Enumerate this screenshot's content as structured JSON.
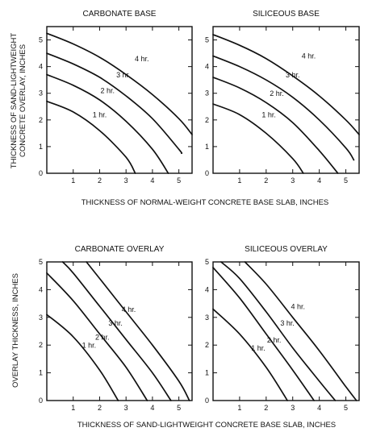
{
  "figure": {
    "top_xlabel": "THICKNESS OF NORMAL-WEIGHT CONCRETE BASE SLAB, INCHES",
    "top_ylabel_line1": "THICKNESS OF SAND-LIGHTWEIGHT",
    "top_ylabel_line2": "CONCRETE OVERLAY, INCHES",
    "bottom_xlabel": "THICKNESS OF SAND-LIGHTWEIGHT CONCRETE BASE SLAB, INCHES",
    "bottom_ylabel": "OVERLAY THICKNESS, INCHES"
  },
  "chart_data": [
    {
      "type": "line",
      "title": "CARBONATE BASE",
      "xlim": [
        0,
        5.5
      ],
      "ylim": [
        0,
        5.5
      ],
      "xticks": [
        "1",
        "2",
        "3",
        "4",
        "5"
      ],
      "yticks": [
        "1",
        "2",
        "3",
        "4",
        "5"
      ],
      "grid": false,
      "series": [
        {
          "name": "1 hr.",
          "x": [
            0,
            1,
            2,
            3,
            3.35
          ],
          "y": [
            2.7,
            2.3,
            1.6,
            0.6,
            0
          ]
        },
        {
          "name": "2 hr.",
          "x": [
            0,
            1,
            2,
            3,
            4,
            4.6
          ],
          "y": [
            3.7,
            3.3,
            2.75,
            1.95,
            0.9,
            0
          ]
        },
        {
          "name": "3 hr.",
          "x": [
            0,
            1,
            2,
            3,
            4,
            5,
            5.1
          ],
          "y": [
            4.5,
            4.1,
            3.6,
            2.9,
            2.05,
            0.9,
            0.75
          ]
        },
        {
          "name": "4 hr.",
          "x": [
            0,
            1,
            2,
            3,
            4,
            5,
            5.5
          ],
          "y": [
            5.25,
            4.85,
            4.35,
            3.7,
            2.95,
            2.05,
            1.45
          ]
        }
      ]
    },
    {
      "type": "line",
      "title": "SILICEOUS BASE",
      "xlim": [
        0,
        5.5
      ],
      "ylim": [
        0,
        5.5
      ],
      "xticks": [
        "1",
        "2",
        "3",
        "4",
        "5"
      ],
      "yticks": [
        "1",
        "2",
        "3",
        "4",
        "5"
      ],
      "grid": false,
      "series": [
        {
          "name": "1 hr.",
          "x": [
            0,
            1,
            2,
            3,
            3.4
          ],
          "y": [
            2.6,
            2.2,
            1.5,
            0.55,
            0
          ]
        },
        {
          "name": "2 hr.",
          "x": [
            0,
            1,
            2,
            3,
            4,
            4.7
          ],
          "y": [
            3.6,
            3.2,
            2.65,
            1.9,
            0.85,
            0
          ]
        },
        {
          "name": "3 hr.",
          "x": [
            0,
            1,
            2,
            3,
            4,
            5,
            5.3
          ],
          "y": [
            4.4,
            4.0,
            3.5,
            2.85,
            2.0,
            0.95,
            0.5
          ]
        },
        {
          "name": "4 hr.",
          "x": [
            0,
            1,
            2,
            3,
            4,
            5,
            5.5
          ],
          "y": [
            5.2,
            4.8,
            4.3,
            3.65,
            2.9,
            2.0,
            1.45
          ]
        }
      ]
    },
    {
      "type": "line",
      "title": "CARBONATE OVERLAY",
      "xlim": [
        0,
        5.5
      ],
      "ylim": [
        0,
        5.0
      ],
      "xticks": [
        "1",
        "2",
        "3",
        "4",
        "5"
      ],
      "yticks": [
        "1",
        "2",
        "3",
        "4",
        "5"
      ],
      "grid": false,
      "series": [
        {
          "name": "1 hr.",
          "x": [
            0,
            1,
            2,
            2.7
          ],
          "y": [
            3.1,
            2.3,
            1.1,
            0
          ]
        },
        {
          "name": "2 hr.",
          "x": [
            0,
            1,
            2,
            3,
            3.8
          ],
          "y": [
            4.6,
            3.6,
            2.4,
            1.2,
            0
          ]
        },
        {
          "name": "3 hr.",
          "x": [
            0.6,
            1,
            2,
            3,
            4,
            4.7
          ],
          "y": [
            5.0,
            4.6,
            3.4,
            2.2,
            1.0,
            0
          ]
        },
        {
          "name": "4 hr.",
          "x": [
            1.5,
            2,
            3,
            4,
            5,
            5.4
          ],
          "y": [
            5.0,
            4.4,
            3.2,
            2.0,
            0.7,
            0
          ]
        }
      ]
    },
    {
      "type": "line",
      "title": "SILICEOUS OVERLAY",
      "xlim": [
        0,
        5.5
      ],
      "ylim": [
        0,
        5.0
      ],
      "xticks": [
        "1",
        "2",
        "3",
        "4",
        "5"
      ],
      "yticks": [
        "1",
        "2",
        "3",
        "4",
        "5"
      ],
      "grid": false,
      "series": [
        {
          "name": "1 hr.",
          "x": [
            0,
            1,
            2,
            2.8
          ],
          "y": [
            3.3,
            2.4,
            1.2,
            0
          ]
        },
        {
          "name": "2 hr.",
          "x": [
            0,
            1,
            2,
            3,
            3.8
          ],
          "y": [
            4.8,
            3.7,
            2.4,
            1.1,
            0
          ]
        },
        {
          "name": "3 hr.",
          "x": [
            0.3,
            1,
            2,
            3,
            4,
            4.6
          ],
          "y": [
            5.0,
            4.4,
            3.2,
            1.9,
            0.7,
            0
          ]
        },
        {
          "name": "4 hr.",
          "x": [
            1.2,
            2,
            3,
            4,
            5,
            5.4
          ],
          "y": [
            5.0,
            4.2,
            3.0,
            1.8,
            0.5,
            0
          ]
        }
      ]
    }
  ]
}
